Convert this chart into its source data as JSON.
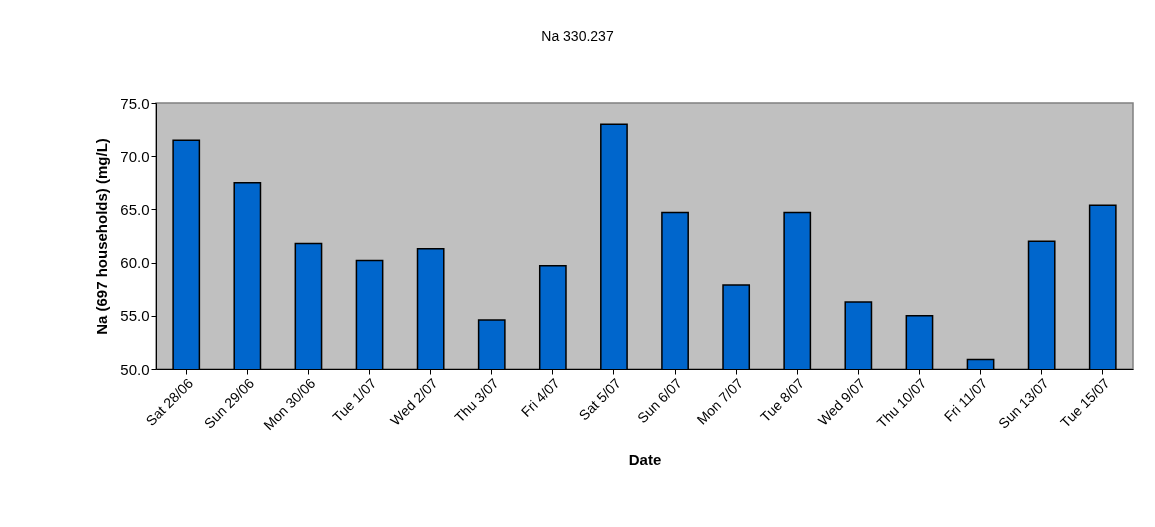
{
  "chart_data": {
    "type": "bar",
    "title": "Na 330.237",
    "xlabel": "Date",
    "ylabel": "Na (697 households) (mg/L)",
    "categories": [
      "Sat 28/06",
      "Sun 29/06",
      "Mon 30/06",
      "Tue 1/07",
      "Wed 2/07",
      "Thu 3/07",
      "Fri 4/07",
      "Sat 5/07",
      "Sun 6/07",
      "Mon 7/07",
      "Tue 8/07",
      "Wed 9/07",
      "Thu 10/07",
      "Fri 11/07",
      "Sun 13/07",
      "Tue 15/07"
    ],
    "values": [
      71.5,
      67.5,
      61.8,
      60.2,
      61.3,
      54.6,
      59.7,
      73.0,
      64.7,
      57.9,
      64.7,
      56.3,
      55.0,
      50.9,
      62.0,
      65.4
    ],
    "color": "#0066cc",
    "ylim": [
      50,
      75
    ],
    "yticks": [
      {
        "value": 50,
        "label": "50.0"
      },
      {
        "value": 55,
        "label": "55.0"
      },
      {
        "value": 60,
        "label": "60.0"
      },
      {
        "value": 65,
        "label": "65.0"
      },
      {
        "value": 70,
        "label": "70.0"
      },
      {
        "value": 75,
        "label": "75.0"
      }
    ],
    "grid": false,
    "legend": false
  }
}
